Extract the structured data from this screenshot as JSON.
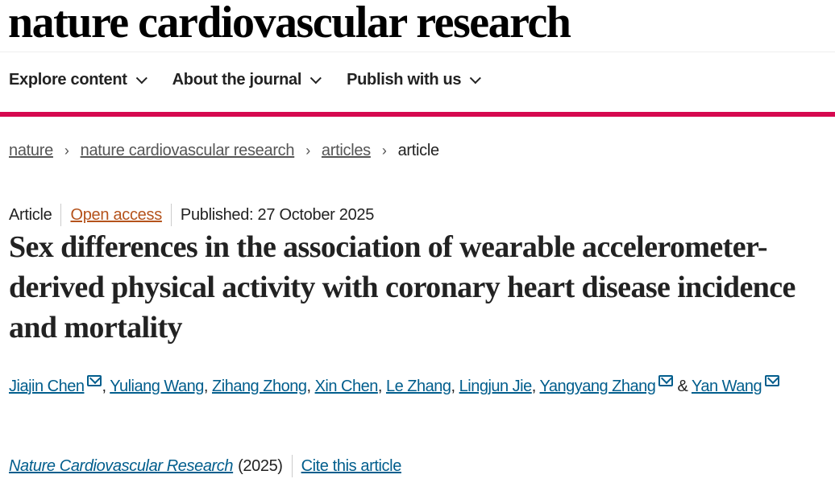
{
  "header": {
    "logo": "nature cardiovascular research"
  },
  "nav": [
    {
      "label": "Explore content"
    },
    {
      "label": "About the journal"
    },
    {
      "label": "Publish with us"
    }
  ],
  "accent_color": "#d6094f",
  "breadcrumb": [
    {
      "label": "nature"
    },
    {
      "label": "nature cardiovascular research"
    },
    {
      "label": "articles"
    },
    {
      "label": "article"
    }
  ],
  "meta": {
    "type": "Article",
    "access": "Open access",
    "published": "Published: 27 October 2025"
  },
  "title": "Sex differences in the association of wearable accelerometer-derived physical activity with coronary heart disease incidence and mortality",
  "authors": [
    {
      "name": "Jiajin Chen",
      "email": true
    },
    {
      "name": "Yuliang Wang"
    },
    {
      "name": "Zihang Zhong"
    },
    {
      "name": "Xin Chen"
    },
    {
      "name": "Le Zhang"
    },
    {
      "name": "Lingjun Jie"
    },
    {
      "name": "Yangyang Zhang",
      "email": true
    },
    {
      "name": "Yan Wang",
      "email": true
    }
  ],
  "authors_conj": "&",
  "citation": {
    "journal": "Nature Cardiovascular Research",
    "year": "(2025)",
    "cite_label": "Cite this article"
  }
}
